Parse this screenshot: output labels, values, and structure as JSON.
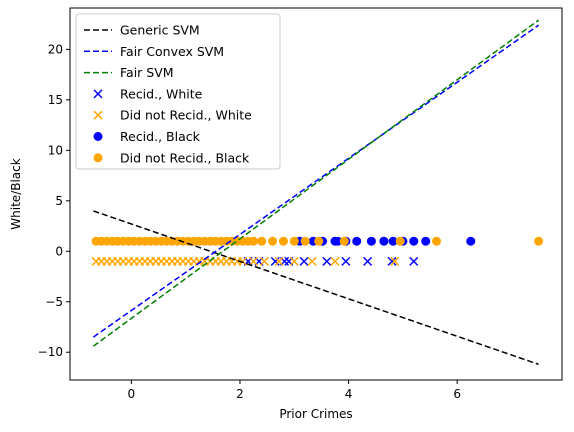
{
  "chart_data": {
    "type": "scatter",
    "xlabel": "Prior Crimes",
    "ylabel": "White/Black",
    "xlim": [
      -1.13,
      7.93
    ],
    "ylim": [
      -12.75,
      24.1
    ],
    "xticks": [
      0,
      2,
      4,
      6
    ],
    "yticks": [
      -10,
      -5,
      0,
      5,
      10,
      15,
      20
    ],
    "grid": false,
    "legend_position": "upper-left",
    "lines": [
      {
        "name": "Generic SVM",
        "color": "#000000",
        "x": [
          -0.7,
          7.5
        ],
        "y": [
          4.0,
          -11.2
        ]
      },
      {
        "name": "Fair Convex SVM",
        "color": "#0000ff",
        "x": [
          -0.7,
          7.5
        ],
        "y": [
          -8.5,
          22.4
        ]
      },
      {
        "name": "Fair SVM",
        "color": "#008000",
        "x": [
          -0.7,
          7.5
        ],
        "y": [
          -9.4,
          22.9
        ]
      }
    ],
    "series": [
      {
        "name": "Recid.,  White",
        "marker": "x",
        "color": "#0000ff",
        "y_const": -1,
        "x": [
          2.15,
          2.35,
          2.65,
          2.82,
          2.9,
          3.18,
          3.6,
          3.95,
          4.35,
          4.8,
          5.2
        ]
      },
      {
        "name": "Did not Recid.,  White",
        "marker": "x",
        "color": "#ffa500",
        "y_const": -1,
        "x": [
          -0.65,
          -0.55,
          -0.45,
          -0.35,
          -0.25,
          -0.15,
          -0.05,
          0.05,
          0.15,
          0.25,
          0.35,
          0.45,
          0.55,
          0.65,
          0.75,
          0.85,
          0.95,
          1.05,
          1.15,
          1.25,
          1.35,
          1.45,
          1.55,
          1.65,
          1.75,
          1.85,
          1.95,
          2.05,
          2.25,
          2.45,
          2.72,
          3.0,
          3.33,
          3.75,
          4.85
        ]
      },
      {
        "name": "Recid.,  Black",
        "marker": "o",
        "color": "#0000ff",
        "y_const": 1,
        "x": [
          3.1,
          3.35,
          3.52,
          3.75,
          3.8,
          3.95,
          4.15,
          4.42,
          4.65,
          4.82,
          5.0,
          5.2,
          5.42,
          6.25
        ]
      },
      {
        "name": "Did not Recid.,  Black",
        "marker": "o",
        "color": "#ffa500",
        "y_const": 1,
        "x": [
          -0.65,
          -0.55,
          -0.45,
          -0.35,
          -0.25,
          -0.15,
          -0.05,
          0.05,
          0.15,
          0.25,
          0.35,
          0.45,
          0.55,
          0.65,
          0.75,
          0.85,
          0.95,
          1.05,
          1.15,
          1.25,
          1.35,
          1.45,
          1.55,
          1.65,
          1.75,
          1.85,
          1.95,
          2.05,
          2.15,
          2.25,
          2.4,
          2.6,
          2.8,
          3.0,
          3.2,
          3.45,
          3.92,
          4.95,
          5.62,
          7.5
        ]
      }
    ]
  }
}
